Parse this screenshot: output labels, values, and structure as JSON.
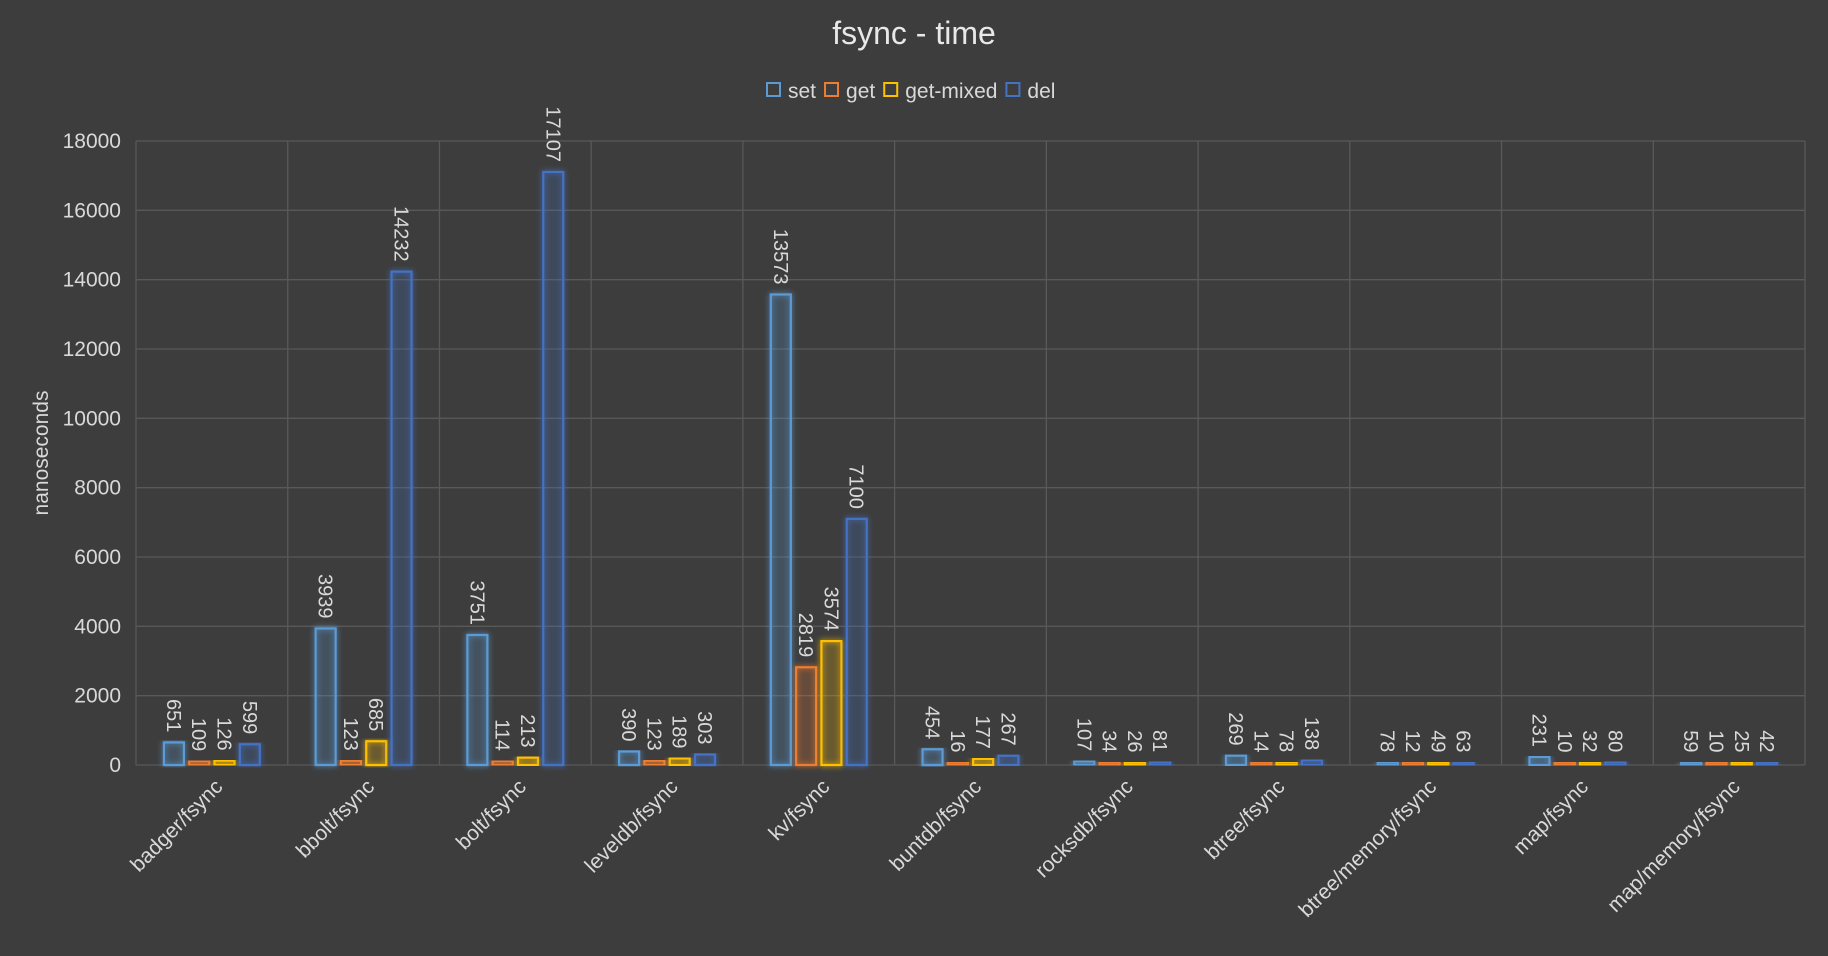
{
  "chart_data": {
    "type": "bar",
    "title": "fsync - time",
    "xlabel": "",
    "ylabel": "nanoseconds",
    "ylim": [
      0,
      18000
    ],
    "yticks": [
      0,
      2000,
      4000,
      6000,
      8000,
      10000,
      12000,
      14000,
      16000,
      18000
    ],
    "grid": true,
    "legend_position": "top",
    "categories": [
      "badger/fsync",
      "bbolt/fsync",
      "bolt/fsync",
      "leveldb/fsync",
      "kv/fsync",
      "buntdb/fsync",
      "rocksdb/fsync",
      "btree/fsync",
      "btree/memory/fsync",
      "map/fsync",
      "map/memory/fsync"
    ],
    "series": [
      {
        "name": "set",
        "color": "#5b9bd5",
        "values": [
          651,
          3939,
          3751,
          390,
          13573,
          454,
          107,
          269,
          78,
          231,
          59
        ]
      },
      {
        "name": "get",
        "color": "#ed7d31",
        "values": [
          109,
          123,
          114,
          123,
          2819,
          16,
          34,
          14,
          12,
          10,
          10
        ]
      },
      {
        "name": "get-mixed",
        "color": "#ffc000",
        "values": [
          126,
          685,
          213,
          189,
          3574,
          177,
          26,
          78,
          49,
          32,
          25
        ]
      },
      {
        "name": "del",
        "color": "#4472c4",
        "values": [
          599,
          14232,
          17107,
          303,
          7100,
          267,
          81,
          138,
          63,
          80,
          42
        ]
      }
    ]
  }
}
